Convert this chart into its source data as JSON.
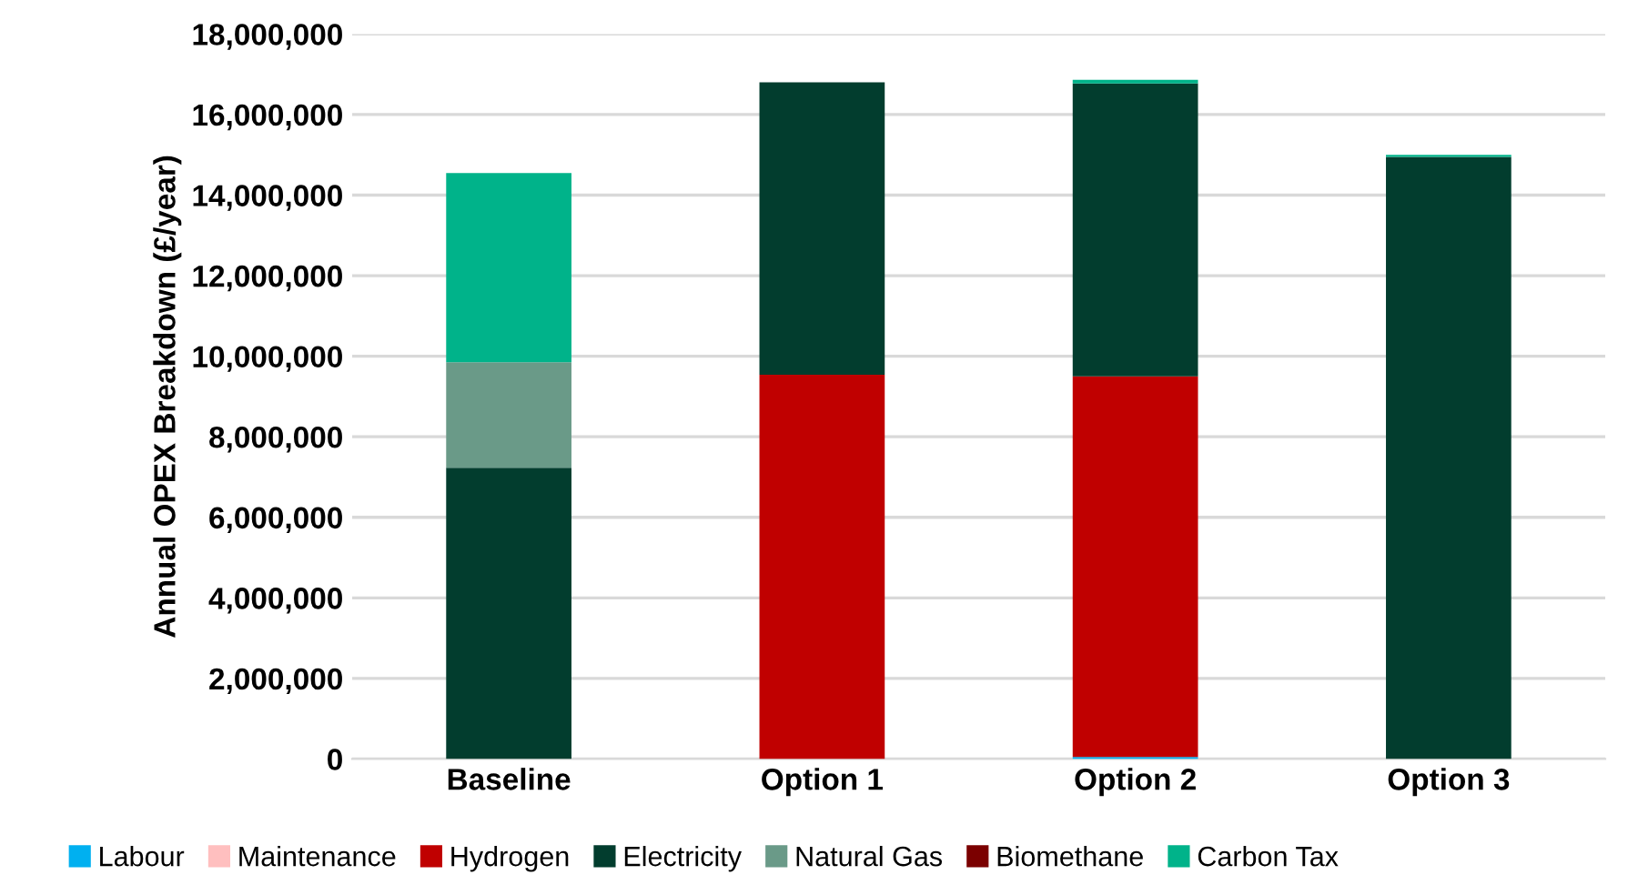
{
  "chart_data": {
    "type": "bar",
    "stacked": true,
    "ylabel": "Annual OPEX Breakdown (£/year)",
    "categories": [
      "Baseline",
      "Option 1",
      "Option 2",
      "Option 3"
    ],
    "series": [
      {
        "name": "Labour",
        "color": "#00b0f0",
        "values": [
          0,
          0,
          50000,
          0
        ]
      },
      {
        "name": "Maintenance",
        "color": "#ffbfbf",
        "values": [
          0,
          0,
          0,
          0
        ]
      },
      {
        "name": "Hydrogen",
        "color": "#c00000",
        "values": [
          0,
          9540000,
          9450000,
          0
        ]
      },
      {
        "name": "Electricity",
        "color": "#023d2e",
        "values": [
          7230000,
          7260000,
          7270000,
          14950000
        ]
      },
      {
        "name": "Natural Gas",
        "color": "#6a9a88",
        "values": [
          2620000,
          0,
          0,
          0
        ]
      },
      {
        "name": "Biomethane",
        "color": "#7b0000",
        "values": [
          0,
          0,
          0,
          0
        ]
      },
      {
        "name": "Carbon Tax",
        "color": "#00b38a",
        "values": [
          4700000,
          0,
          90000,
          50000
        ]
      }
    ],
    "ylim": [
      0,
      18000000
    ],
    "yticks": [
      {
        "value": 0,
        "label": "0"
      },
      {
        "value": 2000000,
        "label": "2,000,000"
      },
      {
        "value": 4000000,
        "label": "4,000,000"
      },
      {
        "value": 6000000,
        "label": "6,000,000"
      },
      {
        "value": 8000000,
        "label": "8,000,000"
      },
      {
        "value": 10000000,
        "label": "10,000,000"
      },
      {
        "value": 12000000,
        "label": "12,000,000"
      },
      {
        "value": 14000000,
        "label": "14,000,000"
      },
      {
        "value": 16000000,
        "label": "16,000,000"
      },
      {
        "value": 18000000,
        "label": "18,000,000"
      }
    ],
    "grid": "y",
    "legend": "bottom"
  }
}
